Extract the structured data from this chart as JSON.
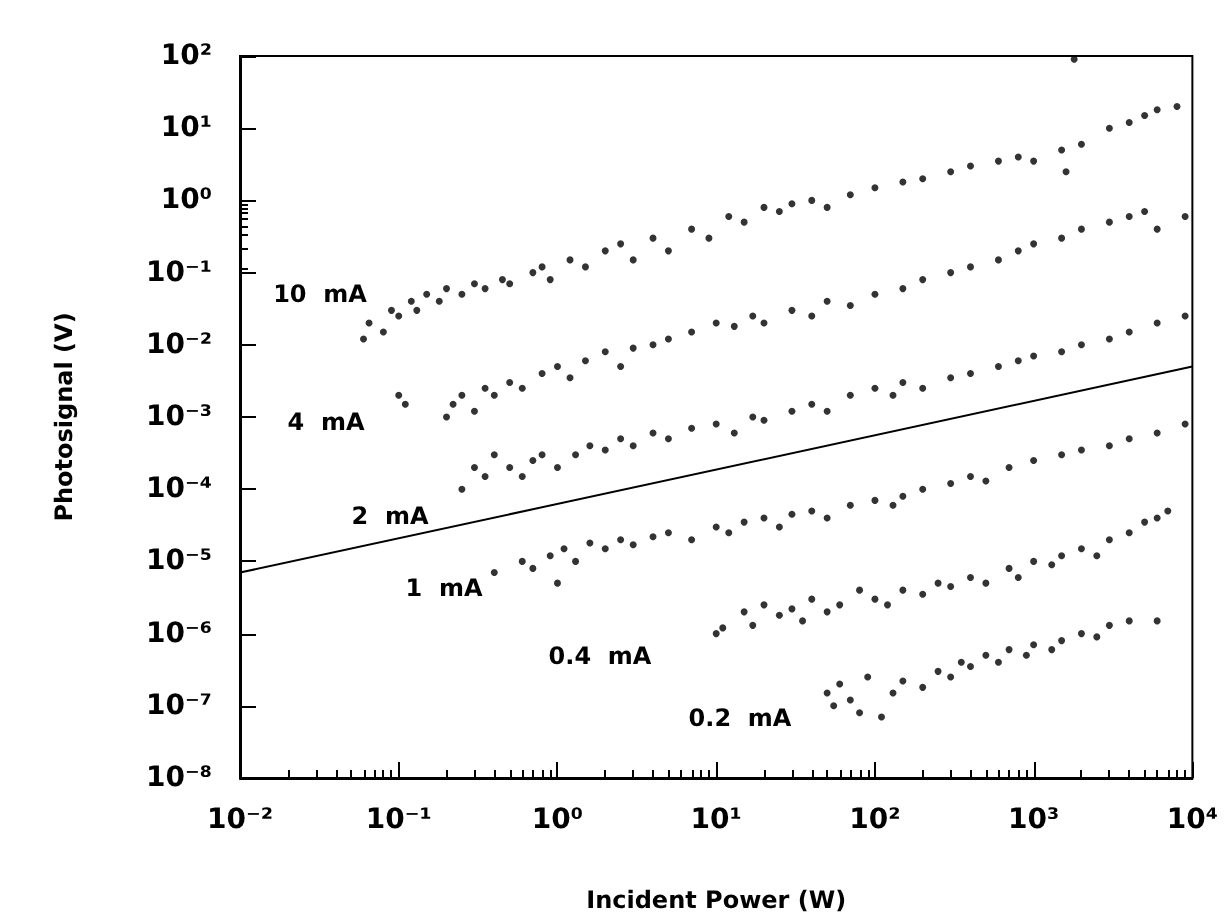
{
  "chart_data": {
    "type": "scatter",
    "xlabel": "Incident Power (W)",
    "ylabel": "Photosignal (V)",
    "log": "xy",
    "grid": false,
    "marker": "circle",
    "xlim": [
      0.01,
      10000
    ],
    "ylim": [
      1e-08,
      100
    ],
    "xticks": [
      {
        "value": 0.01,
        "label": "10⁻²"
      },
      {
        "value": 0.1,
        "label": "10⁻¹"
      },
      {
        "value": 1,
        "label": "10⁰"
      },
      {
        "value": 10,
        "label": "10¹"
      },
      {
        "value": 100,
        "label": "10²"
      },
      {
        "value": 1000,
        "label": "10³"
      },
      {
        "value": 10000,
        "label": "10⁴"
      }
    ],
    "yticks": [
      {
        "value": 1e-08,
        "label": "10⁻⁸"
      },
      {
        "value": 1e-07,
        "label": "10⁻⁷"
      },
      {
        "value": 1e-06,
        "label": "10⁻⁶"
      },
      {
        "value": 1e-05,
        "label": "10⁻⁵"
      },
      {
        "value": 0.0001,
        "label": "10⁻⁴"
      },
      {
        "value": 0.001,
        "label": "10⁻³"
      },
      {
        "value": 0.01,
        "label": "10⁻²"
      },
      {
        "value": 0.1,
        "label": "10⁻¹"
      },
      {
        "value": 1,
        "label": "10⁰"
      },
      {
        "value": 10,
        "label": "10¹"
      },
      {
        "value": 100,
        "label": "10²"
      }
    ],
    "annotations": [
      "10  mA",
      "4  mA",
      "2  mA",
      "1  mA",
      "0.4  mA",
      "0.2  mA"
    ],
    "series": [
      {
        "color": "#000000",
        "x": [
          0.06,
          0.065,
          0.08,
          0.09,
          0.1,
          0.12,
          0.13,
          0.15,
          0.18,
          0.2,
          0.25,
          0.3,
          0.35,
          0.45,
          0.5,
          0.7,
          0.8,
          0.9,
          1.2,
          1.5,
          2,
          2.5,
          3,
          4,
          5,
          7,
          9,
          12,
          15,
          20,
          25,
          30,
          40,
          50,
          70,
          100,
          150,
          200,
          300,
          400,
          600,
          800,
          1000,
          1500,
          1600,
          1800,
          2000,
          3000,
          4000,
          5000,
          6000,
          8000
        ],
        "values": [
          0.012,
          0.02,
          0.015,
          0.03,
          0.025,
          0.04,
          0.03,
          0.05,
          0.04,
          0.06,
          0.05,
          0.07,
          0.06,
          0.08,
          0.07,
          0.1,
          0.12,
          0.08,
          0.15,
          0.12,
          0.2,
          0.25,
          0.15,
          0.3,
          0.2,
          0.4,
          0.3,
          0.6,
          0.5,
          0.8,
          0.7,
          0.9,
          1.0,
          0.8,
          1.2,
          1.5,
          1.8,
          2,
          2.5,
          3,
          3.5,
          4,
          3.5,
          5,
          2.5,
          90,
          6,
          10,
          12,
          15,
          18,
          20
        ]
      },
      {
        "color": "#000000",
        "x": [
          0.1,
          0.11,
          0.2,
          0.22,
          0.25,
          0.3,
          0.35,
          0.4,
          0.5,
          0.6,
          0.8,
          1,
          1.2,
          1.5,
          2,
          2.5,
          3,
          4,
          5,
          7,
          10,
          13,
          17,
          20,
          30,
          40,
          50,
          70,
          100,
          150,
          200,
          300,
          400,
          600,
          800,
          1000,
          1500,
          2000,
          3000,
          4000,
          5000,
          6000,
          9000
        ],
        "values": [
          0.002,
          0.0015,
          0.001,
          0.0015,
          0.002,
          0.0012,
          0.0025,
          0.002,
          0.003,
          0.0025,
          0.004,
          0.005,
          0.0035,
          0.006,
          0.008,
          0.005,
          0.009,
          0.01,
          0.012,
          0.015,
          0.02,
          0.018,
          0.025,
          0.02,
          0.03,
          0.025,
          0.04,
          0.035,
          0.05,
          0.06,
          0.08,
          0.1,
          0.12,
          0.15,
          0.2,
          0.25,
          0.3,
          0.4,
          0.5,
          0.6,
          0.7,
          0.4,
          0.6
        ]
      },
      {
        "color": "#000000",
        "x": [
          0.25,
          0.3,
          0.35,
          0.4,
          0.5,
          0.6,
          0.7,
          0.8,
          1,
          1.3,
          1.6,
          2,
          2.5,
          3,
          4,
          5,
          7,
          10,
          13,
          17,
          20,
          30,
          40,
          50,
          70,
          100,
          130,
          150,
          200,
          300,
          400,
          600,
          800,
          1000,
          1500,
          2000,
          3000,
          4000,
          6000,
          9000
        ],
        "values": [
          0.0001,
          0.0002,
          0.00015,
          0.0003,
          0.0002,
          0.00015,
          0.00025,
          0.0003,
          0.0002,
          0.0003,
          0.0004,
          0.00035,
          0.0005,
          0.0004,
          0.0006,
          0.0005,
          0.0007,
          0.0008,
          0.0006,
          0.001,
          0.0009,
          0.0012,
          0.0015,
          0.0012,
          0.002,
          0.0025,
          0.002,
          0.003,
          0.0025,
          0.0035,
          0.004,
          0.005,
          0.006,
          0.007,
          0.008,
          0.01,
          0.012,
          0.015,
          0.02,
          0.025
        ]
      },
      {
        "color": "#000000",
        "x": [
          0.4,
          0.6,
          0.7,
          0.9,
          1,
          1.1,
          1.3,
          1.6,
          2,
          2.5,
          3,
          4,
          5,
          7,
          10,
          12,
          15,
          20,
          25,
          30,
          40,
          50,
          70,
          100,
          130,
          150,
          200,
          300,
          400,
          500,
          700,
          1000,
          1500,
          2000,
          3000,
          4000,
          6000,
          9000
        ],
        "values": [
          7e-06,
          1e-05,
          8e-06,
          1.2e-05,
          5e-06,
          1.5e-05,
          1e-05,
          1.8e-05,
          1.5e-05,
          2e-05,
          1.7e-05,
          2.2e-05,
          2.5e-05,
          2e-05,
          3e-05,
          2.5e-05,
          3.5e-05,
          4e-05,
          3e-05,
          4.5e-05,
          5e-05,
          4e-05,
          6e-05,
          7e-05,
          6e-05,
          8e-05,
          0.0001,
          0.00012,
          0.00015,
          0.00013,
          0.0002,
          0.00025,
          0.0003,
          0.00035,
          0.0004,
          0.0005,
          0.0006,
          0.0008
        ]
      },
      {
        "color": "#000000",
        "x": [
          10,
          11,
          15,
          17,
          20,
          25,
          30,
          35,
          40,
          50,
          60,
          80,
          100,
          120,
          150,
          200,
          250,
          300,
          400,
          500,
          700,
          800,
          1000,
          1300,
          1500,
          2000,
          2500,
          3000,
          4000,
          5000,
          6000,
          7000
        ],
        "values": [
          1e-06,
          1.2e-06,
          2e-06,
          1.3e-06,
          2.5e-06,
          1.8e-06,
          2.2e-06,
          1.5e-06,
          3e-06,
          2e-06,
          2.5e-06,
          4e-06,
          3e-06,
          2.5e-06,
          4e-06,
          3.5e-06,
          5e-06,
          4.5e-06,
          6e-06,
          5e-06,
          8e-06,
          6e-06,
          1e-05,
          9e-06,
          1.2e-05,
          1.5e-05,
          1.2e-05,
          2e-05,
          2.5e-05,
          3.5e-05,
          4e-05,
          5e-05
        ]
      },
      {
        "color": "#000000",
        "x": [
          50,
          55,
          60,
          70,
          80,
          90,
          110,
          130,
          150,
          200,
          250,
          300,
          350,
          400,
          500,
          600,
          700,
          900,
          1000,
          1300,
          1500,
          2000,
          2500,
          3000,
          4000,
          6000
        ],
        "values": [
          1.5e-07,
          1e-07,
          2e-07,
          1.2e-07,
          8e-08,
          2.5e-07,
          7e-08,
          1.5e-07,
          2.2e-07,
          1.8e-07,
          3e-07,
          2.5e-07,
          4e-07,
          3.5e-07,
          5e-07,
          4e-07,
          6e-07,
          5e-07,
          7e-07,
          6e-07,
          8e-07,
          1e-06,
          9e-07,
          1.3e-06,
          1.5e-06,
          1.5e-06
        ]
      },
      {
        "type": "line",
        "color": "#000000",
        "marker": "none",
        "line_style": "solid",
        "x": [
          0.01,
          10000
        ],
        "values": [
          7e-06,
          0.005
        ]
      }
    ]
  }
}
